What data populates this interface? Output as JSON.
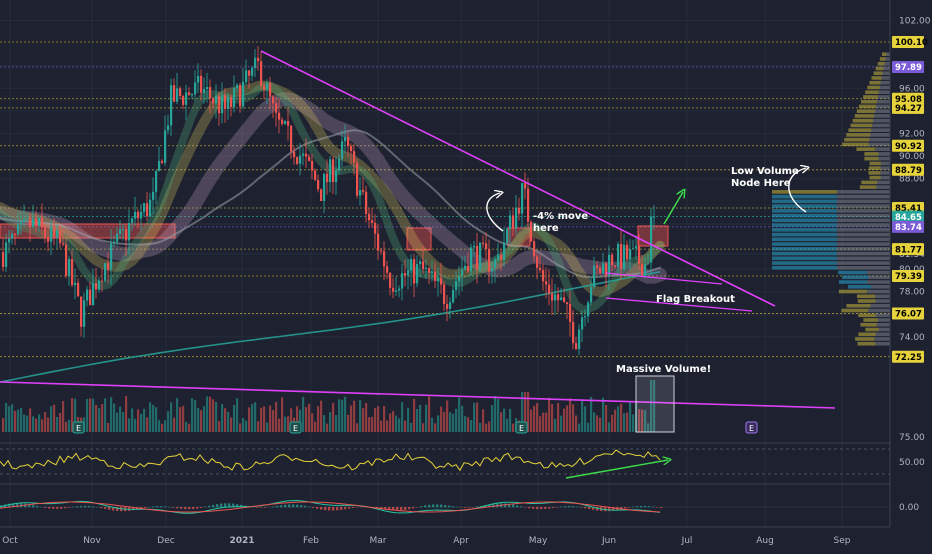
{
  "chart_data": {
    "type": "candlestick",
    "title": "",
    "background": "#1e2230",
    "x_months": [
      "Oct",
      "Nov",
      "Dec",
      "2021",
      "Feb",
      "Mar",
      "Apr",
      "May",
      "Jun",
      "Jul",
      "Aug",
      "Sep"
    ],
    "y_ticks": [
      "102.00",
      "98.00",
      "96.00",
      "94.00",
      "92.00",
      "90.00",
      "88.00",
      "84.00",
      "81.34",
      "80.00",
      "78.00",
      "76.00",
      "74.00"
    ],
    "price_labels": [
      {
        "value": "100.10",
        "price": 100.1,
        "color": "#e6d23a",
        "text_color": "#000000"
      },
      {
        "value": "97.89",
        "price": 97.89,
        "color": "#7b5cd6",
        "text_color": "#ffffff"
      },
      {
        "value": "95.08",
        "price": 95.08,
        "color": "#e6d23a",
        "text_color": "#000000"
      },
      {
        "value": "94.27",
        "price": 94.27,
        "color": "#e6d23a",
        "text_color": "#000000"
      },
      {
        "value": "90.92",
        "price": 90.92,
        "color": "#e6d23a",
        "text_color": "#000000"
      },
      {
        "value": "88.79",
        "price": 88.79,
        "color": "#e6d23a",
        "text_color": "#000000"
      },
      {
        "value": "85.41",
        "price": 85.41,
        "color": "#e6d23a",
        "text_color": "#000000"
      },
      {
        "value": "84.65",
        "price": 84.65,
        "color": "#26a69a",
        "text_color": "#ffffff"
      },
      {
        "value": "83.74",
        "price": 83.74,
        "color": "#7b5cd6",
        "text_color": "#ffffff"
      },
      {
        "value": "81.77",
        "price": 81.77,
        "color": "#e6d23a",
        "text_color": "#000000"
      },
      {
        "value": "79.39",
        "price": 79.39,
        "color": "#e6d23a",
        "text_color": "#000000"
      },
      {
        "value": "76.07",
        "price": 76.07,
        "color": "#e6d23a",
        "text_color": "#000000"
      },
      {
        "value": "72.25",
        "price": 72.25,
        "color": "#e6d23a",
        "text_color": "#000000"
      }
    ],
    "annotations": {
      "move": [
        "-4% move",
        "here"
      ],
      "low_volume": [
        "Low Volume",
        "Node Here"
      ],
      "flag": "Flag Breakout",
      "volume": "Massive Volume!"
    },
    "earnings_marker": "E",
    "rsi_ticks": [
      "75.00",
      "50.00"
    ],
    "macd_ticks": [
      "0.00"
    ],
    "colors": {
      "up": "#26a69a",
      "down": "#ef5350",
      "trendline": "#e040fb",
      "annotation_arrow": "#ffffff",
      "breakout_arrow": "#3ddc4a",
      "rsi": "#e6d23a"
    }
  }
}
